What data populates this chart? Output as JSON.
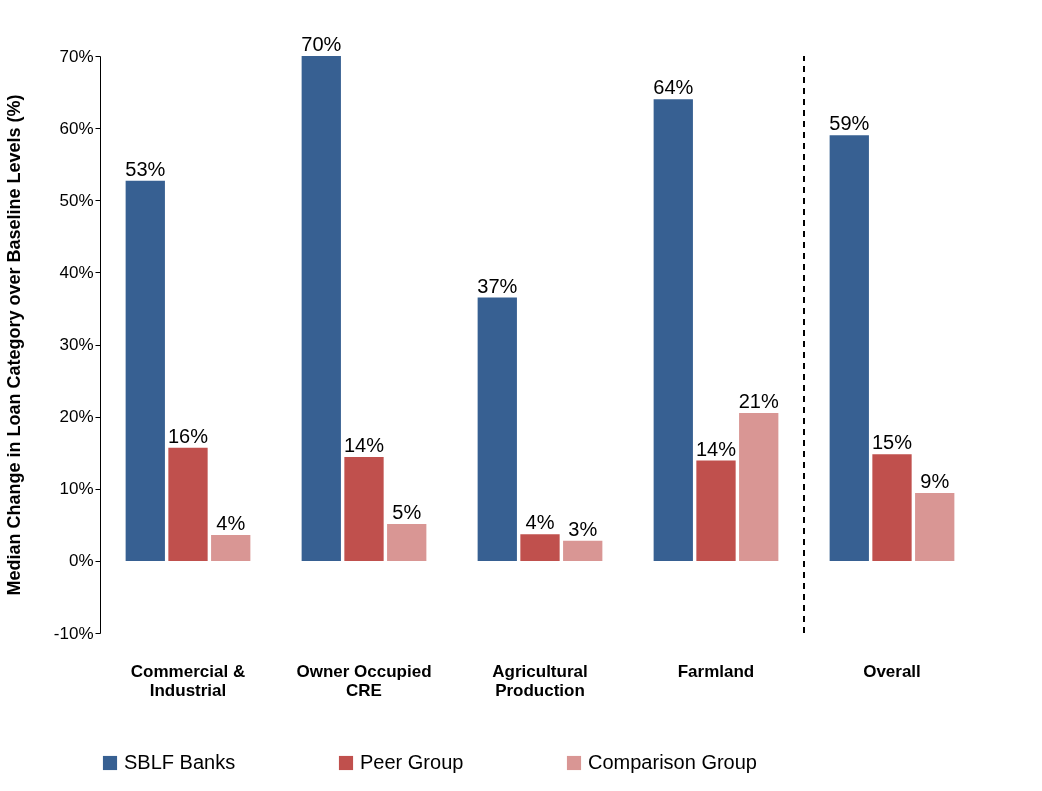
{
  "chart_data": {
    "type": "bar",
    "ylabel": "Median Change in Loan Category over Baseline Levels (%)",
    "categories": [
      "Commercial & Industrial",
      "Owner Occupied CRE",
      "Agricultural Production",
      "Farmland",
      "Overall"
    ],
    "series": [
      {
        "name": "SBLF Banks",
        "color": "#376092",
        "values": [
          52.7,
          70,
          36.5,
          64,
          59
        ],
        "value_labels": [
          "53%",
          "70%",
          "37%",
          "64%",
          "59%"
        ]
      },
      {
        "name": "Peer Group",
        "color": "#c0504d",
        "values": [
          15.7,
          14.4,
          3.7,
          13.9,
          14.8
        ],
        "value_labels": [
          "16%",
          "14%",
          "4%",
          "14%",
          "15%"
        ]
      },
      {
        "name": "Comparison Group",
        "color": "#d99694",
        "values": [
          3.6,
          5.1,
          2.8,
          20.5,
          9.4
        ],
        "value_labels": [
          "4%",
          "5%",
          "3%",
          "21%",
          "9%"
        ]
      }
    ],
    "ylim": [
      -10,
      70
    ],
    "yticks": [
      {
        "value": -10,
        "label": "-10%"
      },
      {
        "value": 0,
        "label": "0%"
      },
      {
        "value": 10,
        "label": "10%"
      },
      {
        "value": 20,
        "label": "20%"
      },
      {
        "value": 30,
        "label": "30%"
      },
      {
        "value": 40,
        "label": "40%"
      },
      {
        "value": 50,
        "label": "50%"
      },
      {
        "value": 60,
        "label": "60%"
      },
      {
        "value": 70,
        "label": "70%"
      }
    ],
    "grid": false,
    "legend": "bottom"
  }
}
